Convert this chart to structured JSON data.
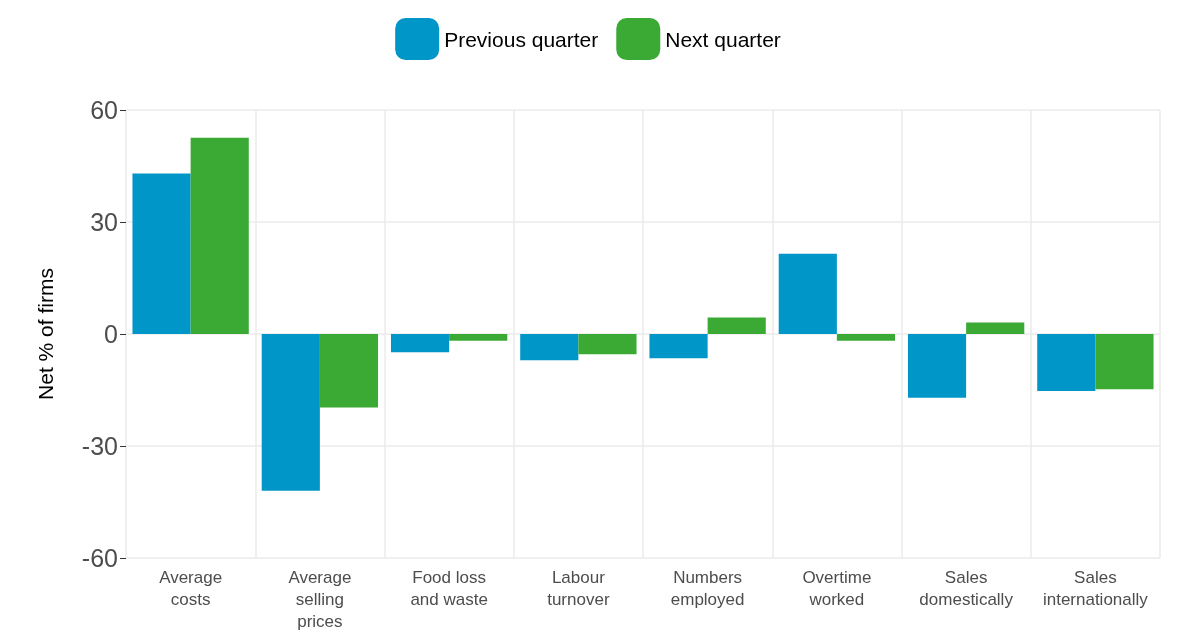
{
  "chart_data": {
    "type": "bar",
    "ylabel": "Net % of firms",
    "categories": [
      "Average costs",
      "Average selling prices",
      "Food loss and waste",
      "Labour turnover",
      "Numbers employed",
      "Overtime worked",
      "Sales domestically",
      "Sales internationally"
    ],
    "series": [
      {
        "name": "Previous quarter",
        "color": "#0096c8",
        "values": [
          43,
          -42,
          -4.9,
          -7,
          -6.5,
          21.5,
          -17.1,
          -15.3
        ]
      },
      {
        "name": "Next quarter",
        "color": "#3aaa35",
        "values": [
          52.6,
          -19.7,
          -1.8,
          -5.4,
          4.4,
          -1.8,
          3.1,
          -14.8
        ]
      }
    ],
    "ylim": [
      -60,
      60
    ],
    "yticks": [
      -60,
      -30,
      0,
      30,
      60
    ],
    "grid": true,
    "legend": "top"
  }
}
